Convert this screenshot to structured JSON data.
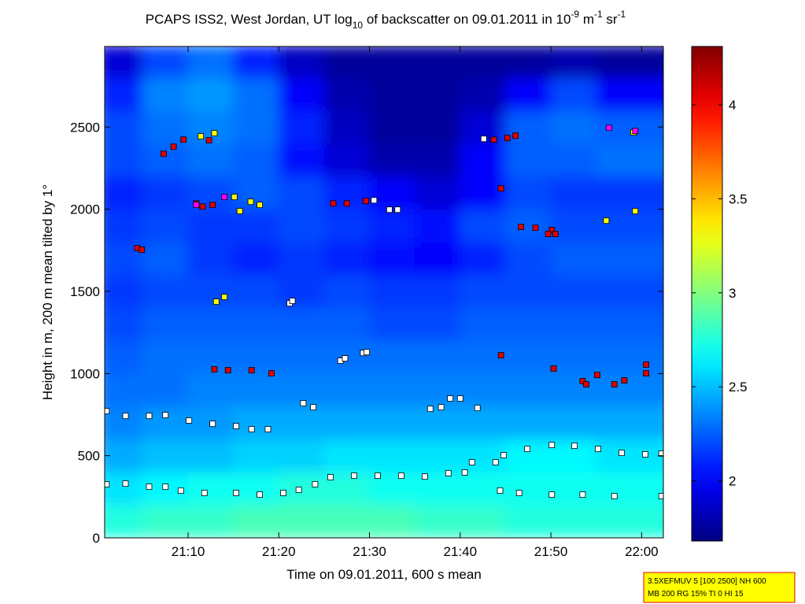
{
  "chart_data": {
    "type": "heatmap",
    "title": [
      "PCAPS ISS2, West Jordan, UT log",
      "10",
      " of backscatter on 09.01.2011 in 10",
      "-9",
      " m",
      "-1",
      " sr",
      "-1"
    ],
    "xlabel": "Time on 09.01.2011, 600 s mean",
    "ylabel": "Height in m, 200 m mean tilted by 1°",
    "xlim": [
      1260.8,
      1322.4
    ],
    "xticks": [
      {
        "value": 1270,
        "label": "21:10"
      },
      {
        "value": 1280,
        "label": "21:20"
      },
      {
        "value": 1290,
        "label": "21:30"
      },
      {
        "value": 1300,
        "label": "21:40"
      },
      {
        "value": 1310,
        "label": "21:50"
      },
      {
        "value": 1320,
        "label": "22:00"
      }
    ],
    "ylim": [
      0,
      2990
    ],
    "yticks": [
      0,
      500,
      1000,
      1500,
      2000,
      2500
    ],
    "colormap": "jet",
    "clim": [
      1.68,
      4.31
    ],
    "cticks": [
      2,
      2.5,
      3,
      3.5,
      4
    ],
    "x_edges": [
      1260,
      1265,
      1270,
      1275,
      1280,
      1285,
      1290,
      1295,
      1300,
      1305,
      1310,
      1315,
      1325
    ],
    "y_edges": [
      0,
      200,
      400,
      600,
      800,
      1000,
      1200,
      1400,
      1600,
      1800,
      2000,
      2200,
      2400,
      2600,
      2800,
      3000
    ],
    "z": [
      [
        2.75,
        2.8,
        2.8,
        2.85,
        2.85,
        2.85,
        2.85,
        2.8,
        2.8,
        2.75,
        2.75,
        2.75
      ],
      [
        2.6,
        2.65,
        2.7,
        2.7,
        2.75,
        2.75,
        2.7,
        2.7,
        2.7,
        2.7,
        2.7,
        2.7
      ],
      [
        2.45,
        2.5,
        2.5,
        2.55,
        2.55,
        2.6,
        2.6,
        2.6,
        2.6,
        2.65,
        2.65,
        2.6
      ],
      [
        2.35,
        2.4,
        2.4,
        2.45,
        2.45,
        2.45,
        2.45,
        2.45,
        2.45,
        2.45,
        2.45,
        2.45
      ],
      [
        2.3,
        2.3,
        2.35,
        2.35,
        2.35,
        2.35,
        2.35,
        2.35,
        2.35,
        2.35,
        2.35,
        2.35
      ],
      [
        2.25,
        2.3,
        2.3,
        2.3,
        2.3,
        2.3,
        2.3,
        2.3,
        2.3,
        2.3,
        2.3,
        2.3
      ],
      [
        2.2,
        2.25,
        2.25,
        2.25,
        2.25,
        2.25,
        2.2,
        2.2,
        2.25,
        2.25,
        2.25,
        2.25
      ],
      [
        2.15,
        2.2,
        2.2,
        2.2,
        2.15,
        2.2,
        2.15,
        2.15,
        2.2,
        2.2,
        2.2,
        2.2
      ],
      [
        2.2,
        2.25,
        2.15,
        2.1,
        2.15,
        2.1,
        2.05,
        2.0,
        2.1,
        2.2,
        2.25,
        2.25
      ],
      [
        2.15,
        2.2,
        2.15,
        2.15,
        2.2,
        2.15,
        2.1,
        2.05,
        2.2,
        2.25,
        2.2,
        2.2
      ],
      [
        2.1,
        2.15,
        2.2,
        2.25,
        2.2,
        2.1,
        2.0,
        1.9,
        2.0,
        2.2,
        2.15,
        2.15
      ],
      [
        2.2,
        2.25,
        2.3,
        2.25,
        2.05,
        1.9,
        1.8,
        1.8,
        2.0,
        2.25,
        2.25,
        2.3
      ],
      [
        2.2,
        2.3,
        2.35,
        2.3,
        2.1,
        1.85,
        1.75,
        1.75,
        1.9,
        2.25,
        2.3,
        2.25
      ],
      [
        2.1,
        2.35,
        2.4,
        2.3,
        2.0,
        1.8,
        1.75,
        1.75,
        1.8,
        2.0,
        2.2,
        2.0
      ],
      [
        1.9,
        2.2,
        2.3,
        2.1,
        1.85,
        1.75,
        1.75,
        1.75,
        1.75,
        1.75,
        1.8,
        1.75
      ]
    ],
    "series": [
      {
        "color": "#ffffff",
        "x": [
          1261.0,
          1263.1,
          1265.7,
          1267.5,
          1269.2,
          1271.8,
          1275.3,
          1277.9,
          1280.5,
          1282.2,
          1284.0,
          1285.7,
          1288.3,
          1290.9,
          1293.5,
          1296.1,
          1298.7,
          1300.5,
          1301.3,
          1303.9,
          1304.8,
          1307.4,
          1310.1,
          1312.6,
          1315.2,
          1317.8,
          1320.4,
          1322.2,
          1304.4,
          1306.5,
          1310.1,
          1313.5,
          1317.0,
          1322.2,
          1261.0,
          1263.1,
          1265.7,
          1267.5,
          1270.1,
          1272.7,
          1275.3,
          1277.0,
          1278.8,
          1282.7,
          1283.8,
          1286.8,
          1287.3,
          1289.3,
          1289.7,
          1281.2,
          1281.5,
          1296.7,
          1297.9,
          1298.9,
          1300.0,
          1301.9,
          1302.6,
          1290.5,
          1292.2,
          1293.1
        ],
        "y": [
          326,
          330,
          311,
          311,
          287,
          273,
          273,
          263,
          273,
          292,
          326,
          369,
          378,
          378,
          378,
          373,
          393,
          398,
          460,
          460,
          503,
          541,
          565,
          560,
          541,
          517,
          508,
          513,
          287,
          273,
          263,
          263,
          254,
          254,
          771,
          742,
          742,
          747,
          714,
          694,
          680,
          661,
          661,
          819,
          795,
          1078,
          1092,
          1125,
          1130,
          1427,
          1442,
          785,
          795,
          848,
          848,
          790,
          2428,
          2054,
          1997,
          1997
        ]
      },
      {
        "color": "#e00000",
        "x": [
          1264.4,
          1264.9,
          1272.9,
          1274.4,
          1277.0,
          1279.2,
          1270.9,
          1271.6,
          1272.7,
          1267.3,
          1268.4,
          1269.5,
          1272.3,
          1286.0,
          1287.5,
          1289.6,
          1303.7,
          1305.2,
          1306.1,
          1304.5,
          1304.5,
          1306.7,
          1308.3,
          1310.1,
          1309.7,
          1310.5,
          1310.3,
          1313.5,
          1313.9,
          1315.1,
          1317.0,
          1318.1,
          1320.5,
          1320.5
        ],
        "y": [
          1763,
          1753,
          1025,
          1020,
          1020,
          1001,
          2035,
          2016,
          2026,
          2337,
          2380,
          2423,
          2419,
          2035,
          2035,
          2050,
          2423,
          2433,
          2447,
          2126,
          1111,
          1892,
          1887,
          1873,
          1849,
          1849,
          1030,
          953,
          934,
          991,
          934,
          958,
          1001,
          1054
        ]
      },
      {
        "color": "#ffff00",
        "x": [
          1273.1,
          1274.0,
          1275.1,
          1275.7,
          1276.9,
          1277.9,
          1271.4,
          1272.9,
          1316.1,
          1319.3,
          1319.1
        ],
        "y": [
          1437,
          1466,
          2074,
          1988,
          2045,
          2026,
          2443,
          2462,
          1930,
          1988,
          2467
        ]
      },
      {
        "color": "#ff00ff",
        "x": [
          1270.9,
          1274.0,
          1316.4,
          1319.3
        ],
        "y": [
          2026,
          2074,
          2495,
          2476
        ]
      }
    ],
    "annotation": [
      "3.5XEFMUV 5 [100 2500] NH 600",
      "MB 200 RG 15% TI 0 HI 15"
    ]
  }
}
